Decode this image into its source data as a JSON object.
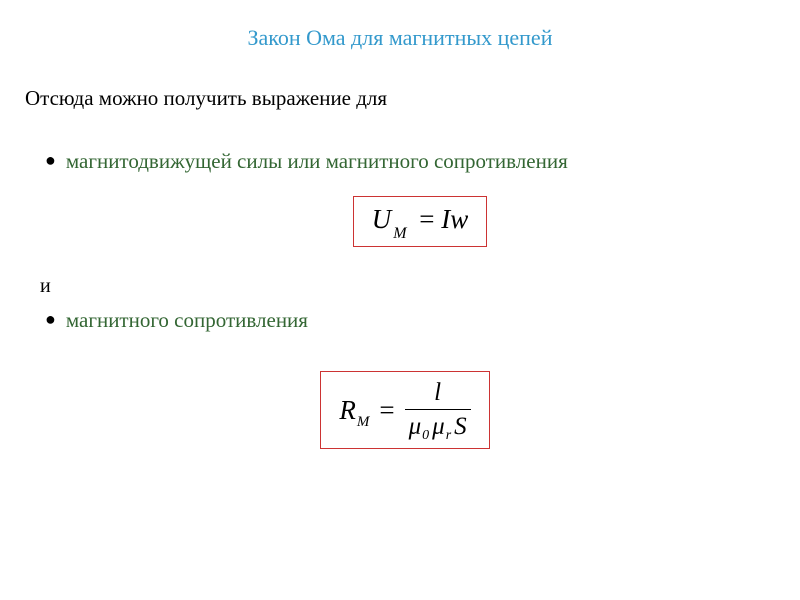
{
  "title": "Закон Ома для магнитных цепей",
  "intro": "Отсюда можно получить выражение для",
  "bullet1": "магнитодвижущей силы  или магнитного сопротивления",
  "and": "и",
  "bullet2": "магнитного сопротивления",
  "formula1": {
    "U": "U",
    "sub_M": "M",
    "equals": " = ",
    "Iw": "Iw"
  },
  "formula2": {
    "R": "R",
    "sub_M": "M",
    "equals": "=",
    "num_l": "l",
    "mu": "μ",
    "sub_0": "0",
    "sub_r": "r",
    "S": "S"
  },
  "colors": {
    "title": "#3399cc",
    "bullet_text": "#336633",
    "formula_border": "#cc3333",
    "text": "#000000",
    "background": "#ffffff"
  },
  "typography": {
    "title_fontsize": 22,
    "body_fontsize": 21,
    "formula_fontsize": 27
  }
}
